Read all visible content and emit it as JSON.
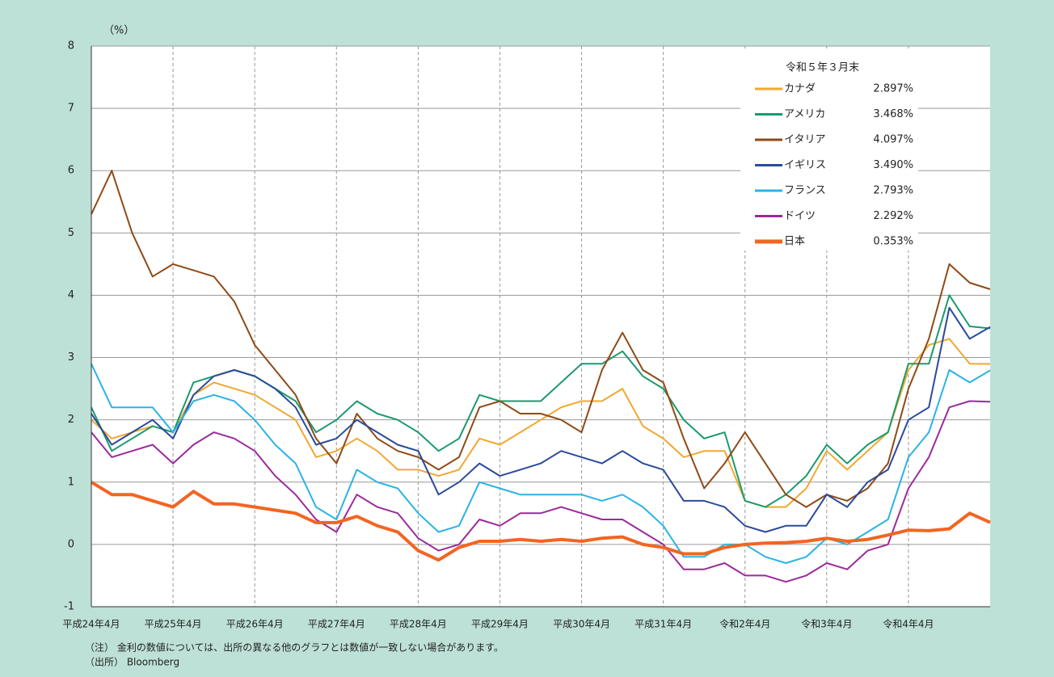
{
  "chart_data": {
    "type": "line",
    "y_unit_label": "（%）",
    "legend_title": "令和５年３月末",
    "categories": [
      "平成24年4月",
      null,
      null,
      null,
      "平成25年4月",
      null,
      null,
      null,
      "平成26年4月",
      null,
      null,
      null,
      "平成27年4月",
      null,
      null,
      null,
      "平成28年4月",
      null,
      null,
      null,
      "平成29年4月",
      null,
      null,
      null,
      "平成30年4月",
      null,
      null,
      null,
      "平成31年4月",
      null,
      null,
      null,
      "令和2年4月",
      null,
      null,
      null,
      "令和3年4月",
      null,
      null,
      null,
      "令和4年4月",
      null,
      null,
      null,
      null
    ],
    "ylim": [
      -1,
      8
    ],
    "yticks": [
      -1,
      0,
      1,
      2,
      3,
      4,
      5,
      6,
      7,
      8
    ],
    "grid": true,
    "series": [
      {
        "name": "カナダ",
        "legend_value": "2.897%",
        "color": "#f2a731",
        "width": 2,
        "values": [
          2.0,
          1.7,
          1.8,
          1.9,
          1.8,
          2.4,
          2.6,
          2.5,
          2.4,
          2.2,
          2.0,
          1.4,
          1.5,
          1.7,
          1.5,
          1.2,
          1.2,
          1.1,
          1.2,
          1.7,
          1.6,
          1.8,
          2.0,
          2.2,
          2.3,
          2.3,
          2.5,
          1.9,
          1.7,
          1.4,
          1.5,
          1.5,
          0.7,
          0.6,
          0.6,
          0.9,
          1.5,
          1.2,
          1.5,
          1.8,
          2.8,
          3.2,
          3.3,
          2.9,
          2.897
        ]
      },
      {
        "name": "アメリカ",
        "legend_value": "3.468%",
        "color": "#1a9a6c",
        "width": 2,
        "values": [
          2.2,
          1.5,
          1.7,
          1.9,
          1.8,
          2.6,
          2.7,
          2.8,
          2.7,
          2.5,
          2.3,
          1.8,
          2.0,
          2.3,
          2.1,
          2.0,
          1.8,
          1.5,
          1.7,
          2.4,
          2.3,
          2.3,
          2.3,
          2.6,
          2.9,
          2.9,
          3.1,
          2.7,
          2.5,
          2.0,
          1.7,
          1.8,
          0.7,
          0.6,
          0.8,
          1.1,
          1.6,
          1.3,
          1.6,
          1.8,
          2.9,
          2.9,
          4.0,
          3.5,
          3.468
        ]
      },
      {
        "name": "イタリア",
        "legend_value": "4.097%",
        "color": "#8f4a16",
        "width": 2,
        "values": [
          5.3,
          6.0,
          5.0,
          4.3,
          4.5,
          4.4,
          4.3,
          3.9,
          3.2,
          2.8,
          2.4,
          1.7,
          1.3,
          2.1,
          1.7,
          1.5,
          1.4,
          1.2,
          1.4,
          2.2,
          2.3,
          2.1,
          2.1,
          2.0,
          1.8,
          2.8,
          3.4,
          2.8,
          2.6,
          1.7,
          0.9,
          1.3,
          1.8,
          1.3,
          0.8,
          0.6,
          0.8,
          0.7,
          0.9,
          1.3,
          2.5,
          3.3,
          4.5,
          4.2,
          4.097
        ]
      },
      {
        "name": "イギリス",
        "legend_value": "3.490%",
        "color": "#2a4a9a",
        "width": 2,
        "values": [
          2.1,
          1.6,
          1.8,
          2.0,
          1.7,
          2.4,
          2.7,
          2.8,
          2.7,
          2.5,
          2.2,
          1.6,
          1.7,
          2.0,
          1.8,
          1.6,
          1.5,
          0.8,
          1.0,
          1.3,
          1.1,
          1.2,
          1.3,
          1.5,
          1.4,
          1.3,
          1.5,
          1.3,
          1.2,
          0.7,
          0.7,
          0.6,
          0.3,
          0.2,
          0.3,
          0.3,
          0.8,
          0.6,
          1.0,
          1.2,
          2.0,
          2.2,
          3.8,
          3.3,
          3.49
        ]
      },
      {
        "name": "フランス",
        "legend_value": "2.793%",
        "color": "#2ab3e6",
        "width": 2,
        "values": [
          2.9,
          2.2,
          2.2,
          2.2,
          1.8,
          2.3,
          2.4,
          2.3,
          2.0,
          1.6,
          1.3,
          0.6,
          0.4,
          1.2,
          1.0,
          0.9,
          0.5,
          0.2,
          0.3,
          1.0,
          0.9,
          0.8,
          0.8,
          0.8,
          0.8,
          0.7,
          0.8,
          0.6,
          0.3,
          -0.2,
          -0.2,
          0.0,
          0.0,
          -0.2,
          -0.3,
          -0.2,
          0.1,
          0.0,
          0.2,
          0.4,
          1.4,
          1.8,
          2.8,
          2.6,
          2.793
        ]
      },
      {
        "name": "ドイツ",
        "legend_value": "2.292%",
        "color": "#9b2a9b",
        "width": 2,
        "values": [
          1.8,
          1.4,
          1.5,
          1.6,
          1.3,
          1.6,
          1.8,
          1.7,
          1.5,
          1.1,
          0.8,
          0.4,
          0.2,
          0.8,
          0.6,
          0.5,
          0.1,
          -0.1,
          0.0,
          0.4,
          0.3,
          0.5,
          0.5,
          0.6,
          0.5,
          0.4,
          0.4,
          0.2,
          0.0,
          -0.4,
          -0.4,
          -0.3,
          -0.5,
          -0.5,
          -0.6,
          -0.5,
          -0.3,
          -0.4,
          -0.1,
          0.0,
          0.9,
          1.4,
          2.2,
          2.3,
          2.292
        ]
      },
      {
        "name": "日本",
        "legend_value": "0.353%",
        "color": "#f26522",
        "width": 4,
        "values": [
          1.0,
          0.8,
          0.8,
          0.7,
          0.6,
          0.85,
          0.65,
          0.65,
          0.6,
          0.55,
          0.5,
          0.35,
          0.35,
          0.45,
          0.3,
          0.2,
          -0.1,
          -0.25,
          -0.05,
          0.05,
          0.05,
          0.08,
          0.05,
          0.08,
          0.05,
          0.1,
          0.12,
          0.0,
          -0.05,
          -0.15,
          -0.15,
          -0.05,
          0.0,
          0.02,
          0.03,
          0.05,
          0.1,
          0.05,
          0.08,
          0.15,
          0.23,
          0.22,
          0.25,
          0.5,
          0.353
        ]
      }
    ],
    "notes": [
      "（注） 金利の数値については、出所の異なる他のグラフとは数値が一致しない場合があります。",
      "（出所） Bloomberg"
    ]
  }
}
